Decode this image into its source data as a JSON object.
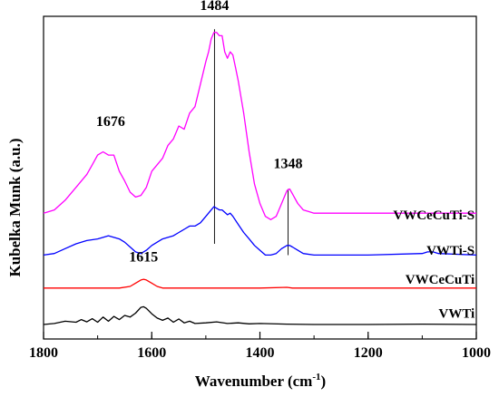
{
  "chart_data": {
    "type": "line",
    "title": "",
    "xlabel": "Wavenumber (cm",
    "xlabel_sup": "-1",
    "xlabel_close": ")",
    "ylabel": "Kubelka Munk (a.u.)",
    "x_reversed": true,
    "xlim": [
      1800,
      1000
    ],
    "ylim": [
      0,
      100
    ],
    "y_tick_labels": "none",
    "grid": false,
    "x_ticks": [
      {
        "value": 1800,
        "label": "1800"
      },
      {
        "value": 1600,
        "label": "1600"
      },
      {
        "value": 1400,
        "label": "1400"
      },
      {
        "value": 1200,
        "label": "1200"
      },
      {
        "value": 1000,
        "label": "1000"
      }
    ],
    "x_minor_step": 100,
    "series": [
      {
        "name": "VWCeCuTi-S",
        "color": "#ff00ff",
        "label_x": 1040,
        "label_y": 38.5,
        "points": [
          [
            1800,
            39
          ],
          [
            1780,
            40
          ],
          [
            1760,
            43
          ],
          [
            1740,
            47
          ],
          [
            1720,
            51
          ],
          [
            1710,
            54
          ],
          [
            1700,
            57
          ],
          [
            1690,
            58
          ],
          [
            1680,
            57
          ],
          [
            1670,
            57
          ],
          [
            1660,
            52
          ],
          [
            1650,
            49
          ],
          [
            1640,
            45.5
          ],
          [
            1630,
            44
          ],
          [
            1620,
            44.5
          ],
          [
            1610,
            47
          ],
          [
            1600,
            52
          ],
          [
            1590,
            54
          ],
          [
            1580,
            56
          ],
          [
            1570,
            60
          ],
          [
            1560,
            62
          ],
          [
            1550,
            66
          ],
          [
            1540,
            65
          ],
          [
            1530,
            70
          ],
          [
            1520,
            72
          ],
          [
            1510,
            79
          ],
          [
            1500,
            86
          ],
          [
            1495,
            89
          ],
          [
            1490,
            93
          ],
          [
            1485,
            95
          ],
          [
            1480,
            95
          ],
          [
            1475,
            94
          ],
          [
            1470,
            94
          ],
          [
            1465,
            89
          ],
          [
            1460,
            87
          ],
          [
            1455,
            89
          ],
          [
            1450,
            88
          ],
          [
            1445,
            84
          ],
          [
            1440,
            80
          ],
          [
            1430,
            70
          ],
          [
            1420,
            58
          ],
          [
            1410,
            48
          ],
          [
            1400,
            42
          ],
          [
            1390,
            38
          ],
          [
            1380,
            37
          ],
          [
            1370,
            38
          ],
          [
            1360,
            42
          ],
          [
            1350,
            46
          ],
          [
            1345,
            46.5
          ],
          [
            1340,
            45
          ],
          [
            1330,
            42
          ],
          [
            1320,
            40
          ],
          [
            1310,
            39.5
          ],
          [
            1300,
            39
          ],
          [
            1200,
            39
          ],
          [
            1100,
            39
          ],
          [
            1000,
            39
          ]
        ]
      },
      {
        "name": "VWTi-S",
        "color": "#0000ff",
        "label_x": 1040,
        "label_y": 27.5,
        "points": [
          [
            1800,
            26
          ],
          [
            1780,
            26.5
          ],
          [
            1760,
            28
          ],
          [
            1740,
            29.5
          ],
          [
            1720,
            30.5
          ],
          [
            1700,
            31
          ],
          [
            1690,
            31.5
          ],
          [
            1680,
            32
          ],
          [
            1670,
            31.5
          ],
          [
            1660,
            31
          ],
          [
            1650,
            30
          ],
          [
            1640,
            28.5
          ],
          [
            1630,
            27
          ],
          [
            1620,
            26.5
          ],
          [
            1610,
            27.5
          ],
          [
            1600,
            29
          ],
          [
            1590,
            30
          ],
          [
            1580,
            31
          ],
          [
            1570,
            31.5
          ],
          [
            1560,
            32
          ],
          [
            1550,
            33
          ],
          [
            1540,
            34
          ],
          [
            1530,
            35
          ],
          [
            1520,
            35
          ],
          [
            1510,
            36
          ],
          [
            1500,
            38
          ],
          [
            1490,
            40
          ],
          [
            1485,
            41
          ],
          [
            1480,
            40.5
          ],
          [
            1475,
            40
          ],
          [
            1470,
            40
          ],
          [
            1460,
            38.5
          ],
          [
            1455,
            39
          ],
          [
            1450,
            38
          ],
          [
            1440,
            35.5
          ],
          [
            1430,
            33
          ],
          [
            1420,
            31
          ],
          [
            1410,
            29
          ],
          [
            1400,
            27.5
          ],
          [
            1390,
            26
          ],
          [
            1380,
            26
          ],
          [
            1370,
            26.5
          ],
          [
            1360,
            28
          ],
          [
            1350,
            29
          ],
          [
            1345,
            29
          ],
          [
            1340,
            28.5
          ],
          [
            1330,
            27.5
          ],
          [
            1320,
            26.5
          ],
          [
            1300,
            26
          ],
          [
            1200,
            26
          ],
          [
            1100,
            26.5
          ],
          [
            1090,
            27
          ],
          [
            1080,
            27
          ],
          [
            1070,
            26.5
          ],
          [
            1000,
            26
          ]
        ]
      },
      {
        "name": "VWCeCuTi",
        "color": "#ff0000",
        "label_x": 1040,
        "label_y": 18.5,
        "points": [
          [
            1800,
            15.8
          ],
          [
            1700,
            15.8
          ],
          [
            1660,
            15.8
          ],
          [
            1640,
            16.3
          ],
          [
            1630,
            17.3
          ],
          [
            1620,
            18.3
          ],
          [
            1615,
            18.5
          ],
          [
            1610,
            18.3
          ],
          [
            1600,
            17.3
          ],
          [
            1590,
            16.3
          ],
          [
            1580,
            15.8
          ],
          [
            1400,
            15.8
          ],
          [
            1350,
            16
          ],
          [
            1340,
            15.8
          ],
          [
            1000,
            15.8
          ]
        ]
      },
      {
        "name": "VWTi",
        "color": "#000000",
        "label_x": 1040,
        "label_y": 8,
        "points": [
          [
            1800,
            4.5
          ],
          [
            1780,
            4.8
          ],
          [
            1760,
            5.5
          ],
          [
            1740,
            5.2
          ],
          [
            1730,
            6
          ],
          [
            1720,
            5.3
          ],
          [
            1710,
            6.3
          ],
          [
            1700,
            5.2
          ],
          [
            1690,
            6.8
          ],
          [
            1680,
            5.5
          ],
          [
            1670,
            7
          ],
          [
            1660,
            6
          ],
          [
            1650,
            7.3
          ],
          [
            1640,
            6.8
          ],
          [
            1630,
            8
          ],
          [
            1620,
            9.8
          ],
          [
            1615,
            10
          ],
          [
            1610,
            9.5
          ],
          [
            1600,
            7.8
          ],
          [
            1590,
            6.5
          ],
          [
            1580,
            5.8
          ],
          [
            1570,
            6.5
          ],
          [
            1560,
            5.2
          ],
          [
            1550,
            6.2
          ],
          [
            1540,
            5
          ],
          [
            1530,
            5.5
          ],
          [
            1520,
            4.8
          ],
          [
            1500,
            5
          ],
          [
            1480,
            5.3
          ],
          [
            1460,
            4.8
          ],
          [
            1440,
            5
          ],
          [
            1420,
            4.7
          ],
          [
            1400,
            4.8
          ],
          [
            1350,
            4.6
          ],
          [
            1300,
            4.5
          ],
          [
            1200,
            4.5
          ],
          [
            1100,
            4.6
          ],
          [
            1000,
            4.5
          ]
        ]
      }
    ],
    "annotations": [
      {
        "text": "1676",
        "x": 1676,
        "y": 66
      },
      {
        "text": "1484",
        "x": 1484,
        "y": 102
      },
      {
        "text": "1348",
        "x": 1348,
        "y": 53
      },
      {
        "text": "1615",
        "x": 1615,
        "y": 24
      }
    ],
    "reference_lines": [
      {
        "x": 1484,
        "y_from": 29.5,
        "y_to": 96
      },
      {
        "x": 1348,
        "y_from": 26,
        "y_to": 46.5
      }
    ]
  }
}
